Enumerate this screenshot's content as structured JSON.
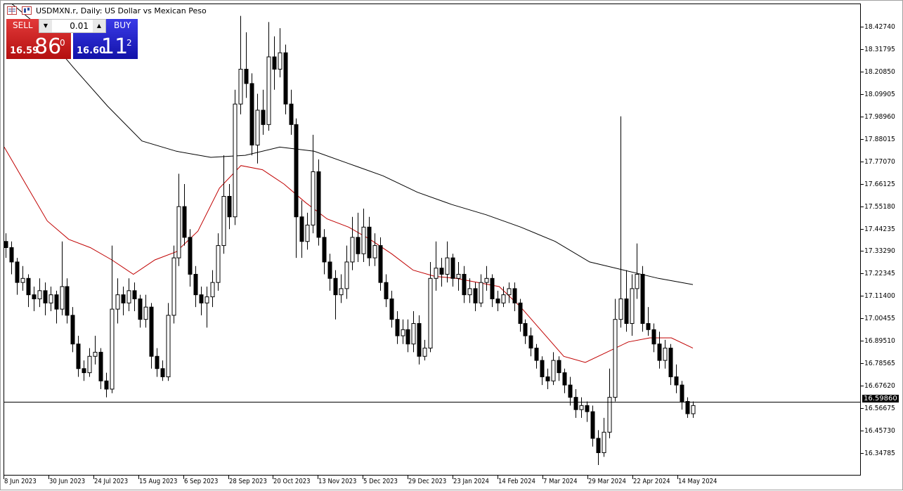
{
  "window": {
    "title": "USDMXN.r, Daily:  US Dollar vs Mexican Peso"
  },
  "trade_panel": {
    "sell_label": "SELL",
    "buy_label": "BUY",
    "lot": "0.01",
    "sell_price": {
      "prefix": "16.59",
      "big": "86",
      "sup": "0"
    },
    "buy_price": {
      "prefix": "16.60",
      "big": "11",
      "sup": "2"
    },
    "sell_color": "#c81e1e",
    "buy_color": "#1e1ec8"
  },
  "chart_data": {
    "type": "candlestick",
    "symbol": "USDMXN.r",
    "timeframe": "Daily",
    "ylim": [
      16.2386,
      18.5368
    ],
    "y_ticks": [
      "18.42740",
      "18.31795",
      "18.20850",
      "18.09905",
      "17.98960",
      "17.88015",
      "17.77070",
      "17.66125",
      "17.55180",
      "17.44235",
      "17.33290",
      "17.22345",
      "17.11400",
      "17.00455",
      "16.89510",
      "16.78565",
      "16.67620",
      "16.56675",
      "16.45730",
      "16.34785"
    ],
    "x_ticks": [
      "8 Jun 2023",
      "30 Jun 2023",
      "24 Jul 2023",
      "15 Aug 2023",
      "6 Sep 2023",
      "28 Sep 2023",
      "20 Oct 2023",
      "13 Nov 2023",
      "5 Dec 2023",
      "29 Dec 2023",
      "23 Jan 2024",
      "14 Feb 2024",
      "7 Mar 2024",
      "29 Mar 2024",
      "22 Apr 2024",
      "14 May 2024"
    ],
    "current_price": "16.59860",
    "bull_color": "#ffffff",
    "bear_color": "#000000",
    "candles": [
      [
        17.38,
        17.42,
        17.3,
        17.35
      ],
      [
        17.35,
        17.38,
        17.22,
        17.28
      ],
      [
        17.28,
        17.3,
        17.12,
        17.18
      ],
      [
        17.18,
        17.26,
        17.14,
        17.2
      ],
      [
        17.2,
        17.22,
        17.06,
        17.12
      ],
      [
        17.12,
        17.16,
        17.04,
        17.1
      ],
      [
        17.1,
        17.2,
        17.06,
        17.14
      ],
      [
        17.14,
        17.18,
        17.02,
        17.08
      ],
      [
        17.08,
        17.16,
        17.04,
        17.12
      ],
      [
        17.12,
        17.14,
        16.98,
        17.05
      ],
      [
        17.05,
        17.38,
        17.02,
        17.16
      ],
      [
        17.16,
        17.2,
        16.98,
        17.02
      ],
      [
        17.02,
        17.06,
        16.84,
        16.88
      ],
      [
        16.88,
        16.92,
        16.72,
        16.76
      ],
      [
        16.76,
        16.8,
        16.7,
        16.74
      ],
      [
        16.74,
        16.86,
        16.72,
        16.82
      ],
      [
        16.82,
        16.92,
        16.78,
        16.84
      ],
      [
        16.84,
        16.86,
        16.66,
        16.7
      ],
      [
        16.7,
        16.74,
        16.62,
        16.66
      ],
      [
        16.66,
        17.36,
        16.64,
        17.05
      ],
      [
        17.05,
        17.2,
        16.98,
        17.12
      ],
      [
        17.12,
        17.16,
        17.02,
        17.08
      ],
      [
        17.08,
        17.2,
        17.04,
        17.14
      ],
      [
        17.14,
        17.18,
        17.04,
        17.1
      ],
      [
        17.1,
        17.12,
        16.96,
        17.0
      ],
      [
        17.0,
        17.12,
        16.96,
        17.06
      ],
      [
        17.06,
        17.08,
        16.76,
        16.82
      ],
      [
        16.82,
        16.86,
        16.72,
        16.76
      ],
      [
        16.76,
        16.8,
        16.7,
        16.72
      ],
      [
        16.72,
        17.08,
        16.7,
        17.02
      ],
      [
        17.02,
        17.36,
        16.98,
        17.3
      ],
      [
        17.3,
        17.71,
        17.26,
        17.55
      ],
      [
        17.55,
        17.66,
        17.36,
        17.4
      ],
      [
        17.4,
        17.44,
        17.16,
        17.22
      ],
      [
        17.22,
        17.26,
        17.06,
        17.12
      ],
      [
        17.12,
        17.16,
        17.02,
        17.08
      ],
      [
        17.08,
        17.16,
        16.96,
        17.11
      ],
      [
        17.11,
        17.24,
        17.06,
        17.18
      ],
      [
        17.18,
        17.42,
        17.14,
        17.36
      ],
      [
        17.36,
        17.8,
        17.32,
        17.6
      ],
      [
        17.6,
        17.66,
        17.44,
        17.5
      ],
      [
        17.5,
        18.12,
        17.46,
        18.05
      ],
      [
        18.05,
        18.48,
        18.0,
        18.22
      ],
      [
        18.22,
        18.4,
        18.08,
        18.15
      ],
      [
        18.15,
        18.2,
        17.8,
        17.85
      ],
      [
        17.85,
        18.1,
        17.76,
        18.02
      ],
      [
        18.02,
        18.12,
        17.9,
        17.95
      ],
      [
        17.95,
        18.45,
        17.92,
        18.28
      ],
      [
        18.28,
        18.38,
        18.12,
        18.22
      ],
      [
        18.22,
        18.42,
        18.18,
        18.3
      ],
      [
        18.3,
        18.34,
        18.0,
        18.05
      ],
      [
        18.05,
        18.12,
        17.9,
        17.95
      ],
      [
        17.95,
        17.98,
        17.3,
        17.5
      ],
      [
        17.5,
        17.58,
        17.3,
        17.38
      ],
      [
        17.38,
        17.52,
        17.34,
        17.46
      ],
      [
        17.46,
        17.9,
        17.42,
        17.72
      ],
      [
        17.72,
        17.78,
        17.36,
        17.4
      ],
      [
        17.4,
        17.44,
        17.22,
        17.28
      ],
      [
        17.28,
        17.32,
        17.14,
        17.2
      ],
      [
        17.2,
        17.24,
        17.0,
        17.12
      ],
      [
        17.12,
        17.22,
        17.08,
        17.15
      ],
      [
        17.15,
        17.36,
        17.1,
        17.28
      ],
      [
        17.28,
        17.5,
        17.24,
        17.4
      ],
      [
        17.4,
        17.52,
        17.28,
        17.32
      ],
      [
        17.32,
        17.54,
        17.28,
        17.45
      ],
      [
        17.45,
        17.5,
        17.26,
        17.3
      ],
      [
        17.3,
        17.42,
        17.26,
        17.36
      ],
      [
        17.36,
        17.4,
        17.14,
        17.18
      ],
      [
        17.18,
        17.22,
        17.06,
        17.1
      ],
      [
        17.1,
        17.14,
        16.96,
        17.0
      ],
      [
        17.0,
        17.04,
        16.88,
        16.92
      ],
      [
        16.92,
        17.0,
        16.88,
        16.95
      ],
      [
        16.95,
        17.0,
        16.84,
        16.88
      ],
      [
        16.88,
        17.04,
        16.84,
        16.98
      ],
      [
        16.98,
        17.02,
        16.78,
        16.82
      ],
      [
        16.82,
        16.9,
        16.8,
        16.86
      ],
      [
        16.86,
        17.28,
        16.84,
        17.2
      ],
      [
        17.2,
        17.38,
        17.14,
        17.25
      ],
      [
        17.25,
        17.3,
        17.16,
        17.22
      ],
      [
        17.22,
        17.38,
        17.18,
        17.3
      ],
      [
        17.3,
        17.32,
        17.16,
        17.2
      ],
      [
        17.2,
        17.28,
        17.14,
        17.22
      ],
      [
        17.22,
        17.26,
        17.08,
        17.12
      ],
      [
        17.12,
        17.2,
        17.08,
        17.15
      ],
      [
        17.15,
        17.18,
        17.04,
        17.08
      ],
      [
        17.08,
        17.22,
        17.06,
        17.18
      ],
      [
        17.18,
        17.26,
        17.14,
        17.2
      ],
      [
        17.2,
        17.22,
        17.06,
        17.1
      ],
      [
        17.1,
        17.14,
        17.04,
        17.08
      ],
      [
        17.08,
        17.16,
        17.06,
        17.12
      ],
      [
        17.12,
        17.18,
        17.08,
        17.15
      ],
      [
        17.15,
        17.18,
        17.04,
        17.08
      ],
      [
        17.08,
        17.1,
        16.94,
        16.98
      ],
      [
        16.98,
        17.0,
        16.88,
        16.92
      ],
      [
        16.92,
        16.96,
        16.82,
        16.86
      ],
      [
        16.86,
        16.88,
        16.76,
        16.8
      ],
      [
        16.8,
        16.82,
        16.68,
        16.72
      ],
      [
        16.72,
        16.76,
        16.66,
        16.7
      ],
      [
        16.7,
        16.84,
        16.68,
        16.8
      ],
      [
        16.8,
        16.82,
        16.7,
        16.74
      ],
      [
        16.74,
        16.76,
        16.64,
        16.68
      ],
      [
        16.68,
        16.72,
        16.58,
        16.62
      ],
      [
        16.62,
        16.66,
        16.52,
        16.56
      ],
      [
        16.56,
        16.62,
        16.52,
        16.58
      ],
      [
        16.58,
        16.6,
        16.5,
        16.55
      ],
      [
        16.55,
        16.58,
        16.38,
        16.42
      ],
      [
        16.42,
        16.46,
        16.29,
        16.35
      ],
      [
        16.35,
        16.52,
        16.33,
        16.45
      ],
      [
        16.45,
        16.76,
        16.42,
        16.62
      ],
      [
        16.62,
        17.1,
        16.6,
        17.0
      ],
      [
        17.0,
        17.99,
        16.96,
        17.1
      ],
      [
        17.1,
        17.24,
        16.94,
        16.98
      ],
      [
        16.98,
        17.22,
        16.92,
        17.15
      ],
      [
        17.15,
        17.37,
        17.1,
        17.22
      ],
      [
        17.22,
        17.26,
        16.94,
        16.98
      ],
      [
        16.98,
        17.06,
        16.92,
        16.95
      ],
      [
        16.95,
        16.98,
        16.84,
        16.88
      ],
      [
        16.88,
        16.94,
        16.76,
        16.8
      ],
      [
        16.8,
        16.9,
        16.76,
        16.86
      ],
      [
        16.86,
        16.88,
        16.68,
        16.72
      ],
      [
        16.72,
        16.78,
        16.64,
        16.68
      ],
      [
        16.68,
        16.7,
        16.56,
        16.6
      ],
      [
        16.6,
        16.62,
        16.52,
        16.54
      ],
      [
        16.54,
        16.6,
        16.52,
        16.58
      ]
    ],
    "ma_red": {
      "color": "#c00000",
      "values": [
        17.84,
        17.66,
        17.48,
        17.39,
        17.35,
        17.29,
        17.22,
        17.29,
        17.33,
        17.43,
        17.64,
        17.75,
        17.73,
        17.66,
        17.57,
        17.49,
        17.45,
        17.39,
        17.32,
        17.24,
        17.21,
        17.2,
        17.18,
        17.16,
        17.06,
        16.94,
        16.82,
        16.79,
        16.84,
        16.89,
        16.91,
        16.91,
        16.86
      ]
    },
    "ma_black": {
      "color": "#000000",
      "values": [
        18.57,
        18.43,
        18.23,
        18.04,
        17.87,
        17.82,
        17.79,
        17.8,
        17.84,
        17.82,
        17.76,
        17.7,
        17.62,
        17.56,
        17.51,
        17.45,
        17.38,
        17.28,
        17.24,
        17.2,
        17.17
      ]
    }
  }
}
